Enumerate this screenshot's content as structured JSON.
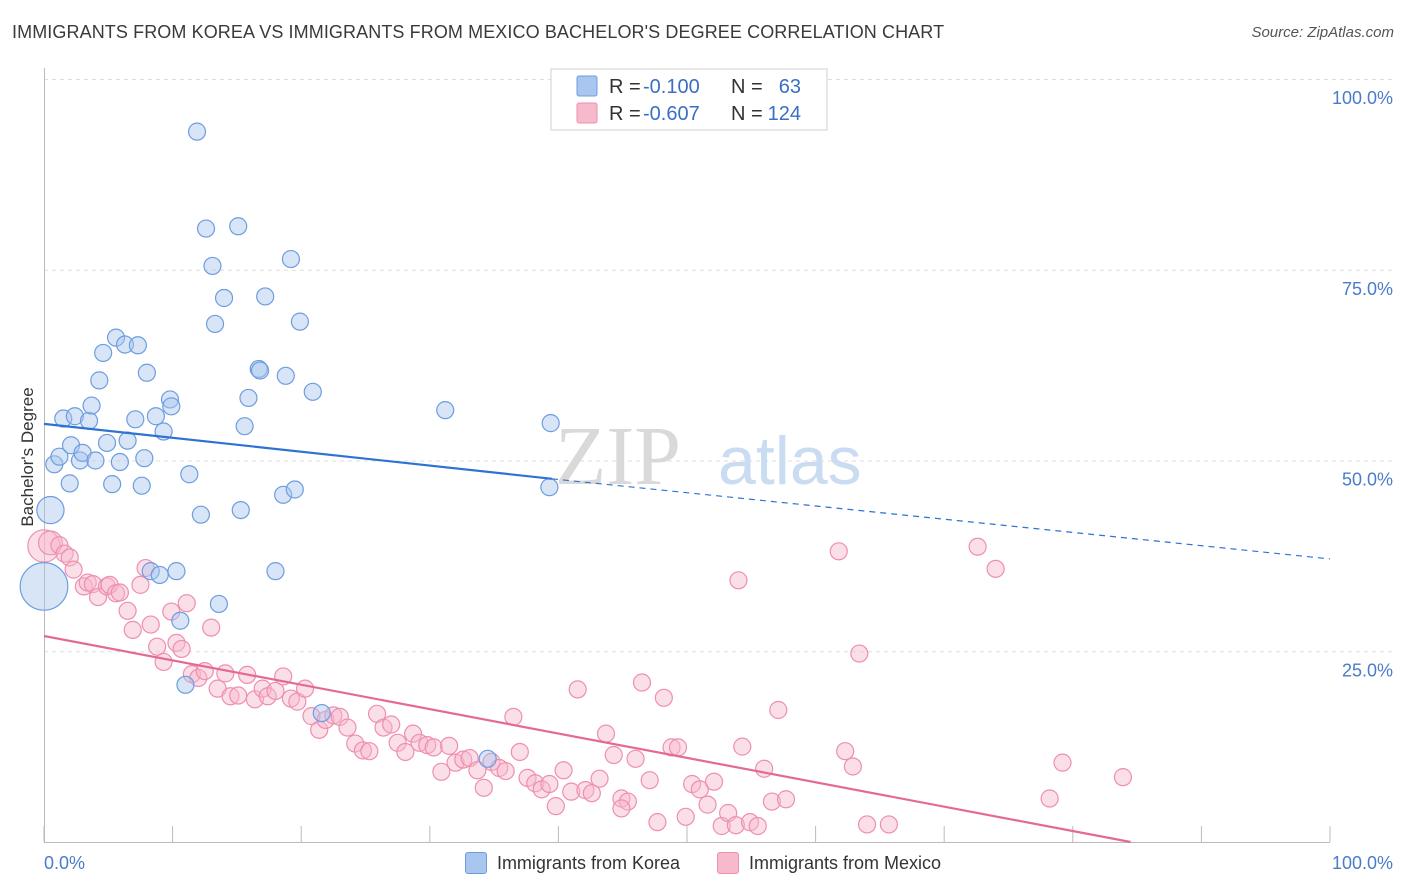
{
  "title": "IMMIGRANTS FROM KOREA VS IMMIGRANTS FROM MEXICO BACHELOR'S DEGREE CORRELATION CHART",
  "source": "Source: ZipAtlas.com",
  "colors": {
    "korea_fill": "#a9c6ee",
    "korea_stroke": "#6d9de0",
    "korea_line": "#2d73d2",
    "mexico_fill": "#f7b9cc",
    "mexico_stroke": "#ee8fae",
    "mexico_line": "#e46a96",
    "tick": "#4a7cc8",
    "grid": "#dddddd"
  },
  "legend": {
    "rows": [
      {
        "r_label": "R =",
        "r_value": "-0.100",
        "n_label": "N =",
        "n_value": "63"
      },
      {
        "r_label": "R =",
        "r_value": "-0.607",
        "n_label": "N =",
        "n_value": "124"
      }
    ]
  },
  "watermark": {
    "part1": "ZIP",
    "part2": "atlas"
  },
  "chart_data": {
    "type": "scatter",
    "title": "IMMIGRANTS FROM KOREA VS IMMIGRANTS FROM MEXICO BACHELOR'S DEGREE CORRELATION CHART",
    "xlabel": "",
    "ylabel": "Bachelor's Degree",
    "xlim": [
      0,
      100
    ],
    "ylim": [
      0,
      100
    ],
    "x_tick_labels": [
      "0.0%",
      "100.0%"
    ],
    "y_tick_labels": [
      "100.0%",
      "75.0%",
      "50.0%",
      "25.0%"
    ],
    "y_tick_values": [
      100,
      75,
      50,
      25
    ],
    "series": [
      {
        "name": "Immigrants from Korea",
        "r": -0.1,
        "n": 63,
        "trend": {
          "x0": 0,
          "y0": 54.8,
          "x1": 39.5,
          "y1": 47.6,
          "dash_x1": 100,
          "dash_y1": 37.1
        },
        "points": [
          [
            0.5,
            43.5,
            1.6
          ],
          [
            0.0,
            33.5,
            2.8
          ],
          [
            0.8,
            49.5,
            1.0
          ],
          [
            1.2,
            50.5,
            1.0
          ],
          [
            1.5,
            55.5,
            1.0
          ],
          [
            2.0,
            47,
            1.0
          ],
          [
            2.1,
            52,
            1.0
          ],
          [
            2.4,
            55.8,
            1.0
          ],
          [
            2.8,
            50,
            1.0
          ],
          [
            3.0,
            51,
            1.0
          ],
          [
            3.5,
            55.2,
            1.0
          ],
          [
            3.7,
            57.2,
            1.0
          ],
          [
            4.0,
            50,
            1.0
          ],
          [
            4.3,
            60.5,
            1.0
          ],
          [
            4.6,
            64.1,
            1.0
          ],
          [
            4.9,
            52.3,
            1.0
          ],
          [
            5.3,
            46.9,
            1.0
          ],
          [
            5.6,
            66.1,
            1.0
          ],
          [
            5.9,
            49.8,
            1.0
          ],
          [
            6.3,
            65.2,
            1.0
          ],
          [
            6.5,
            52.6,
            1.0
          ],
          [
            7.1,
            55.4,
            1.0
          ],
          [
            7.3,
            65.1,
            1.0
          ],
          [
            7.6,
            46.7,
            1.0
          ],
          [
            7.8,
            50.3,
            1.0
          ],
          [
            8.0,
            61.5,
            1.0
          ],
          [
            8.3,
            35.5,
            1.0
          ],
          [
            8.7,
            55.8,
            1.0
          ],
          [
            9.0,
            35,
            1.0
          ],
          [
            9.3,
            53.8,
            1.0
          ],
          [
            9.8,
            58,
            1.0
          ],
          [
            9.9,
            57.1,
            1.0
          ],
          [
            10.3,
            35.5,
            1.0
          ],
          [
            10.6,
            29,
            1.0
          ],
          [
            11.0,
            20.6,
            1.0
          ],
          [
            11.3,
            48.2,
            1.0
          ],
          [
            11.9,
            93.1,
            1.0
          ],
          [
            12.2,
            42.9,
            1.0
          ],
          [
            12.6,
            80.4,
            1.0
          ],
          [
            13.1,
            75.5,
            1.0
          ],
          [
            13.3,
            67.9,
            1.0
          ],
          [
            13.6,
            31.2,
            1.0
          ],
          [
            14.0,
            71.3,
            1.0
          ],
          [
            15.1,
            80.7,
            1.0
          ],
          [
            15.3,
            43.5,
            1.0
          ],
          [
            15.6,
            54.5,
            1.0
          ],
          [
            15.9,
            58.2,
            1.0
          ],
          [
            16.7,
            62,
            1.0
          ],
          [
            16.8,
            61.8,
            1.0
          ],
          [
            17.2,
            71.5,
            1.0
          ],
          [
            18.0,
            35.5,
            1.0
          ],
          [
            18.6,
            45.5,
            1.0
          ],
          [
            18.8,
            61.1,
            1.0
          ],
          [
            19.2,
            76.4,
            1.0
          ],
          [
            19.5,
            46.2,
            1.0
          ],
          [
            19.9,
            68.2,
            1.0
          ],
          [
            20.9,
            59,
            1.0
          ],
          [
            21.6,
            16.9,
            1.0
          ],
          [
            31.2,
            56.6,
            1.0
          ],
          [
            34.5,
            10.9,
            1.0
          ],
          [
            39.3,
            46.5,
            1.0
          ],
          [
            39.4,
            54.9,
            1.0
          ]
        ]
      },
      {
        "name": "Immigrants from Mexico",
        "r": -0.607,
        "n": 124,
        "trend": {
          "x0": 0,
          "y0": 27,
          "x1": 84.5,
          "y1": 0
        },
        "points": [
          [
            0.0,
            38.8,
            1.9
          ],
          [
            0.5,
            39.2,
            1.4
          ],
          [
            1.2,
            38.9,
            1.0
          ],
          [
            1.6,
            37.8,
            1.0
          ],
          [
            2.0,
            37.3,
            1.0
          ],
          [
            2.3,
            35.7,
            1.0
          ],
          [
            3.1,
            33.5,
            1.0
          ],
          [
            3.4,
            34,
            1.0
          ],
          [
            3.8,
            33.8,
            1.0
          ],
          [
            4.2,
            32.1,
            1.0
          ],
          [
            4.9,
            33.5,
            1.0
          ],
          [
            5.1,
            33.7,
            1.0
          ],
          [
            5.6,
            32.6,
            1.0
          ],
          [
            5.9,
            32.7,
            1.0
          ],
          [
            6.5,
            30.3,
            1.0
          ],
          [
            6.9,
            27.8,
            1.0
          ],
          [
            7.5,
            33.7,
            1.0
          ],
          [
            7.9,
            35.9,
            1.0
          ],
          [
            8.3,
            28.5,
            1.0
          ],
          [
            8.8,
            25.6,
            1.0
          ],
          [
            9.3,
            23.6,
            1.0
          ],
          [
            9.9,
            30.2,
            1.0
          ],
          [
            10.3,
            26.1,
            1.0
          ],
          [
            10.7,
            25.3,
            1.0
          ],
          [
            11.1,
            31.3,
            1.0
          ],
          [
            11.5,
            22,
            1.0
          ],
          [
            12.0,
            21.5,
            1.0
          ],
          [
            12.5,
            22.4,
            1.0
          ],
          [
            13.0,
            28.1,
            1.0
          ],
          [
            13.5,
            20.1,
            1.0
          ],
          [
            14.1,
            22.1,
            1.0
          ],
          [
            14.5,
            19.1,
            1.0
          ],
          [
            15.1,
            19.2,
            1.0
          ],
          [
            15.8,
            21.9,
            1.0
          ],
          [
            16.4,
            18.7,
            1.0
          ],
          [
            17.0,
            20.1,
            1.0
          ],
          [
            17.4,
            19.1,
            1.0
          ],
          [
            18.0,
            19.8,
            1.0
          ],
          [
            18.6,
            21.7,
            1.0
          ],
          [
            19.2,
            18.8,
            1.0
          ],
          [
            19.7,
            18.4,
            1.0
          ],
          [
            20.3,
            20.1,
            1.0
          ],
          [
            20.8,
            16.5,
            1.0
          ],
          [
            21.4,
            14.7,
            1.0
          ],
          [
            21.9,
            16,
            1.0
          ],
          [
            22.5,
            16.6,
            1.0
          ],
          [
            23.0,
            16.4,
            1.0
          ],
          [
            23.6,
            15,
            1.0
          ],
          [
            24.2,
            12.9,
            1.0
          ],
          [
            24.8,
            12,
            1.0
          ],
          [
            25.3,
            11.9,
            1.0
          ],
          [
            25.9,
            16.8,
            1.0
          ],
          [
            26.4,
            15,
            1.0
          ],
          [
            27.0,
            15.4,
            1.0
          ],
          [
            27.5,
            13,
            1.0
          ],
          [
            28.1,
            11.8,
            1.0
          ],
          [
            28.7,
            14.2,
            1.0
          ],
          [
            29.2,
            13,
            1.0
          ],
          [
            29.8,
            12.7,
            1.0
          ],
          [
            30.3,
            12.4,
            1.0
          ],
          [
            30.9,
            9.2,
            1.0
          ],
          [
            31.5,
            12.6,
            1.0
          ],
          [
            32.0,
            10.4,
            1.0
          ],
          [
            32.6,
            10.8,
            1.0
          ],
          [
            33.1,
            11,
            1.0
          ],
          [
            33.7,
            9.4,
            1.0
          ],
          [
            34.2,
            7.1,
            1.0
          ],
          [
            34.8,
            10.5,
            1.0
          ],
          [
            35.4,
            9.7,
            1.0
          ],
          [
            35.9,
            9.3,
            1.0
          ],
          [
            36.5,
            16.4,
            1.0
          ],
          [
            37.0,
            11.8,
            1.0
          ],
          [
            37.6,
            8.4,
            1.0
          ],
          [
            38.2,
            7.7,
            1.0
          ],
          [
            38.7,
            6.9,
            1.0
          ],
          [
            39.3,
            7.6,
            1.0
          ],
          [
            39.8,
            4.7,
            1.0
          ],
          [
            40.4,
            9.4,
            1.0
          ],
          [
            41.0,
            6.6,
            1.0
          ],
          [
            41.5,
            20,
            1.0
          ],
          [
            42.1,
            6.8,
            1.0
          ],
          [
            42.6,
            6.4,
            1.0
          ],
          [
            43.2,
            8.3,
            1.0
          ],
          [
            43.7,
            14.2,
            1.0
          ],
          [
            44.3,
            11.4,
            1.0
          ],
          [
            44.9,
            5.7,
            1.0
          ],
          [
            45.4,
            5.3,
            1.0
          ],
          [
            46.0,
            10.9,
            1.0
          ],
          [
            46.5,
            20.9,
            1.0
          ],
          [
            47.1,
            8.1,
            1.0
          ],
          [
            47.7,
            2.6,
            1.0
          ],
          [
            48.2,
            18.9,
            1.0
          ],
          [
            48.8,
            12.4,
            1.0
          ],
          [
            49.3,
            12.4,
            1.0
          ],
          [
            49.9,
            3.3,
            1.0
          ],
          [
            50.4,
            7.6,
            1.0
          ],
          [
            51.0,
            6.9,
            1.0
          ],
          [
            51.6,
            4.9,
            1.0
          ],
          [
            52.1,
            7.9,
            1.0
          ],
          [
            52.7,
            2.1,
            1.0
          ],
          [
            53.2,
            3.8,
            1.0
          ],
          [
            53.8,
            2.2,
            1.0
          ],
          [
            54.3,
            12.5,
            1.0
          ],
          [
            54.9,
            2.6,
            1.0
          ],
          [
            55.5,
            2.1,
            1.0
          ],
          [
            56.0,
            9.6,
            1.0
          ],
          [
            56.6,
            5.3,
            1.0
          ],
          [
            57.1,
            17.3,
            1.0
          ],
          [
            57.7,
            5.6,
            1.0
          ],
          [
            61.8,
            38.1,
            1.0
          ],
          [
            62.3,
            11.9,
            1.0
          ],
          [
            62.9,
            9.9,
            1.0
          ],
          [
            63.4,
            24.7,
            1.0
          ],
          [
            64.0,
            2.3,
            1.0
          ],
          [
            65.7,
            2.3,
            1.0
          ],
          [
            72.6,
            38.7,
            1.0
          ],
          [
            74.0,
            35.8,
            1.0
          ],
          [
            78.2,
            5.7,
            1.0
          ],
          [
            79.2,
            10.4,
            1.0
          ],
          [
            83.9,
            8.5,
            1.0
          ],
          [
            54.0,
            34.3,
            1.0
          ],
          [
            44.9,
            4.4,
            1.0
          ]
        ]
      }
    ]
  },
  "bottom_legend": {
    "korea_label": "Immigrants from Korea",
    "mexico_label": "Immigrants from Mexico"
  }
}
